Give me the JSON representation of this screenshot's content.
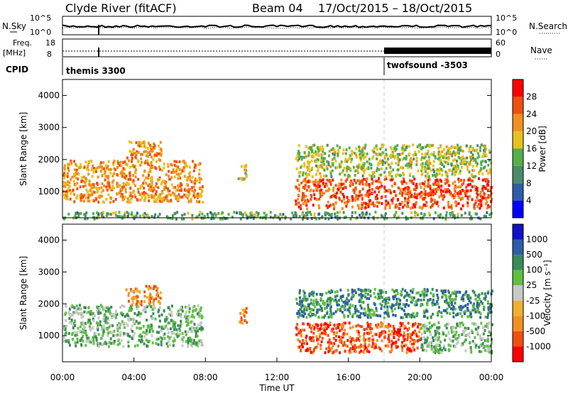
{
  "header": {
    "station": "Clyde River (fitACF)",
    "beam": "Beam 04",
    "date_range": "17/Oct/2015 – 18/Oct/2015"
  },
  "strip_labels": {
    "nsky": "N.Sky",
    "nsearch": "N.Search",
    "freq": "Freq.",
    "freq_unit": "[MHz]",
    "nave": "Nave",
    "cpid": "CPID",
    "noise_ticks_left": [
      "10^5",
      "10^0"
    ],
    "noise_ticks_right": [
      "10^5",
      "10^0"
    ],
    "freq_ticks": [
      "18",
      "8"
    ],
    "nave_ticks": [
      "60",
      "0"
    ]
  },
  "cpid_segments": [
    {
      "label": "themis 3300",
      "start_hour": 0
    },
    {
      "label": "twofsound -3503",
      "start_hour": 18
    }
  ],
  "colors": {
    "power_scale": [
      "#0000ff",
      "#2e5ea8",
      "#4a8a6a",
      "#52b04a",
      "#e8c020",
      "#f09020",
      "#f05010",
      "#ff0000"
    ],
    "velocity_scale": [
      "#ff0000",
      "#f05010",
      "#f09020",
      "#f0b030",
      "#c8c8c8",
      "#5fc040",
      "#3a8a5a",
      "#2e5ea8",
      "#1010c8"
    ]
  },
  "chart_data": [
    {
      "type": "heatmap",
      "panel": "power",
      "ylabel": "Slant Range [km]",
      "colorbar_label": "Power [dB]",
      "colorbar_ticks": [
        "4",
        "8",
        "12",
        "16",
        "20",
        "24",
        "28"
      ],
      "ylim": [
        180,
        4500
      ],
      "y_ticks": [
        "1000",
        "2000",
        "3000",
        "4000"
      ],
      "xlim_hours": [
        0,
        24
      ],
      "regions": [
        {
          "t0": 0.0,
          "t1": 7.8,
          "r0": 700,
          "r1": 2000,
          "value": 22
        },
        {
          "t0": 3.5,
          "t1": 5.5,
          "r0": 2000,
          "r1": 2600,
          "value": 22
        },
        {
          "t0": 9.8,
          "t1": 10.3,
          "r0": 1400,
          "r1": 1900,
          "value": 18
        },
        {
          "t0": 13.0,
          "t1": 24.0,
          "r0": 500,
          "r1": 1450,
          "value": 26
        },
        {
          "t0": 13.0,
          "t1": 24.0,
          "r0": 1500,
          "r1": 2500,
          "value": 16
        },
        {
          "t0": 0.0,
          "t1": 24.0,
          "r0": 180,
          "r1": 400,
          "value": 12
        }
      ]
    },
    {
      "type": "heatmap",
      "panel": "velocity",
      "ylabel": "Slant Range [km]",
      "colorbar_label": "Velocity [m s⁻¹]",
      "colorbar_ticks": [
        "-1000",
        "-500",
        "-100",
        "-25",
        "25",
        "100",
        "500",
        "1000"
      ],
      "ylim": [
        180,
        4500
      ],
      "y_ticks": [
        "1000",
        "2000",
        "3000",
        "4000"
      ],
      "xlim_hours": [
        0,
        24
      ],
      "x_ticks": [
        "00:00",
        "04:00",
        "08:00",
        "12:00",
        "16:00",
        "20:00",
        "00:00"
      ],
      "xlabel": "Time UT",
      "regions": [
        {
          "t0": 0.0,
          "t1": 7.8,
          "r0": 700,
          "r1": 2000,
          "value": 100
        },
        {
          "t0": 3.5,
          "t1": 5.5,
          "r0": 2000,
          "r1": 2600,
          "value": -100
        },
        {
          "t0": 9.8,
          "t1": 10.3,
          "r0": 1400,
          "r1": 1900,
          "value": -100
        },
        {
          "t0": 13.0,
          "t1": 20.0,
          "r0": 500,
          "r1": 1450,
          "value": -500
        },
        {
          "t0": 20.0,
          "t1": 24.0,
          "r0": 500,
          "r1": 1450,
          "value": 100
        },
        {
          "t0": 13.0,
          "t1": 24.0,
          "r0": 1600,
          "r1": 2500,
          "value": 500
        }
      ]
    }
  ]
}
